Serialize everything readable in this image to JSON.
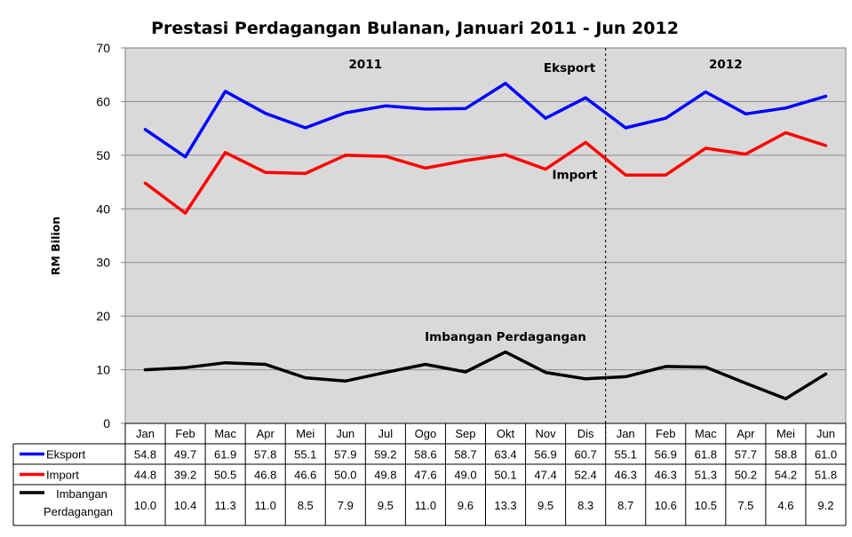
{
  "chart_data": {
    "type": "line",
    "title": "Prestasi Perdagangan Bulanan, Januari 2011 - Jun 2012",
    "ylabel": "RM Bilion",
    "xlabel": "",
    "ylim": [
      0,
      70
    ],
    "yticks": [
      "0",
      "10",
      "20",
      "30",
      "40",
      "50",
      "60",
      "70"
    ],
    "grid": true,
    "categories": [
      "Jan",
      "Feb",
      "Mac",
      "Apr",
      "Mei",
      "Jun",
      "Jul",
      "Ogo",
      "Sep",
      "Okt",
      "Nov",
      "Dis",
      "Jan",
      "Feb",
      "Mac",
      "Apr",
      "Mei",
      "Jun"
    ],
    "year_labels": [
      "2011",
      "2012"
    ],
    "year_split_after_index": 11,
    "series": [
      {
        "name": "Eksport",
        "table_label": "Eksport",
        "color": "#0000ff",
        "values": [
          54.8,
          49.7,
          61.9,
          57.8,
          55.1,
          57.9,
          59.2,
          58.6,
          58.7,
          63.4,
          56.9,
          60.7,
          55.1,
          56.9,
          61.8,
          57.7,
          58.8,
          61.0
        ]
      },
      {
        "name": "Import",
        "table_label": "Import",
        "color": "#ff0000",
        "values": [
          44.8,
          39.2,
          50.5,
          46.8,
          46.6,
          50.0,
          49.8,
          47.6,
          49.0,
          50.1,
          47.4,
          52.4,
          46.3,
          46.3,
          51.3,
          50.2,
          54.2,
          51.8
        ]
      },
      {
        "name": "Imbangan Perdagangan",
        "table_label_lines": [
          "Imbangan",
          "Perdagangan"
        ],
        "color": "#000000",
        "values": [
          10.0,
          10.4,
          11.3,
          11.0,
          8.5,
          7.9,
          9.5,
          11.0,
          9.6,
          13.3,
          9.5,
          8.3,
          8.7,
          10.6,
          10.5,
          7.5,
          4.6,
          9.2
        ]
      }
    ],
    "annotations": [
      "Eksport",
      "Import",
      "Imbangan Perdagangan"
    ],
    "colors": {
      "plot_background": "#d9d9d9",
      "gridline": "#8c8c8c"
    }
  }
}
